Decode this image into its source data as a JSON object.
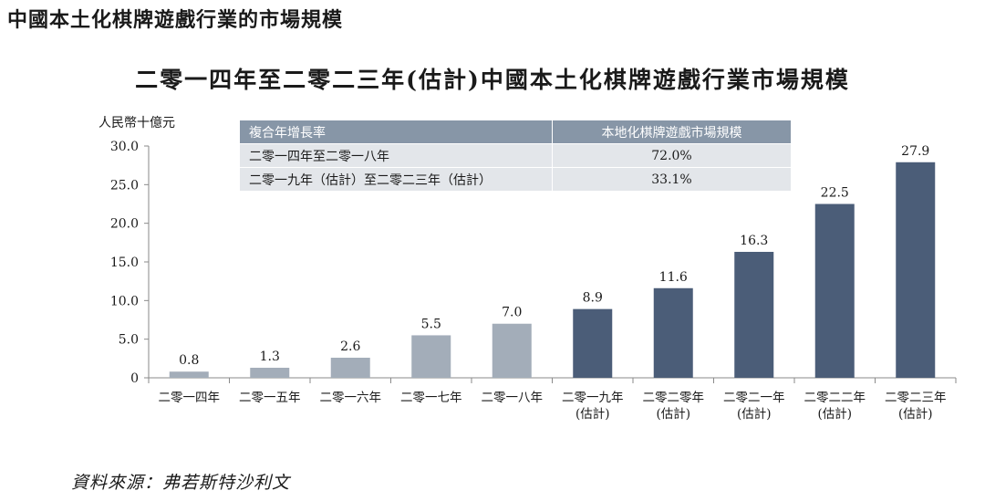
{
  "page_heading": "中國本土化棋牌遊戲行業的市場規模",
  "source": "資料來源：弗若斯特沙利文",
  "table": {
    "headers": [
      "複合年增長率",
      "本地化棋牌遊戲市場規模"
    ],
    "rows": [
      {
        "period": "二零一四年至二零一八年",
        "value": "72.0%"
      },
      {
        "period": "二零一九年（估計）至二零二三年（估計）",
        "value": "33.1%"
      }
    ]
  },
  "colors": {
    "historical_bar": "#a3adb9",
    "forecast_bar": "#4b5d78",
    "axis": "#8a8a8a",
    "table_header_bg": "#8796a7",
    "table_row_bg": "#e3e6ea"
  },
  "chart_data": {
    "type": "bar",
    "title": "二零一四年至二零二三年(估計)中國本土化棋牌遊戲行業市場規模",
    "ylabel": "人民幣十億元",
    "xlabel": "",
    "ylim": [
      0,
      30
    ],
    "yticks": [
      "0",
      "5.0",
      "10.0",
      "15.0",
      "20.0",
      "25.0",
      "30.0"
    ],
    "grid": false,
    "categories": [
      [
        "二零一四年"
      ],
      [
        "二零一五年"
      ],
      [
        "二零一六年"
      ],
      [
        "二零一七年"
      ],
      [
        "二零一八年"
      ],
      [
        "二零一九年",
        "(估計)"
      ],
      [
        "二零二零年",
        "(估計)"
      ],
      [
        "二零二一年",
        "(估計)"
      ],
      [
        "二零二二年",
        "(估計)"
      ],
      [
        "二零二三年",
        "(估計)"
      ]
    ],
    "values": [
      0.8,
      1.3,
      2.6,
      5.5,
      7.0,
      8.9,
      11.6,
      16.3,
      22.5,
      27.9
    ],
    "value_labels": [
      "0.8",
      "1.3",
      "2.6",
      "5.5",
      "7.0",
      "8.9",
      "11.6",
      "16.3",
      "22.5",
      "27.9"
    ],
    "estimated": [
      false,
      false,
      false,
      false,
      false,
      true,
      true,
      true,
      true,
      true
    ]
  }
}
